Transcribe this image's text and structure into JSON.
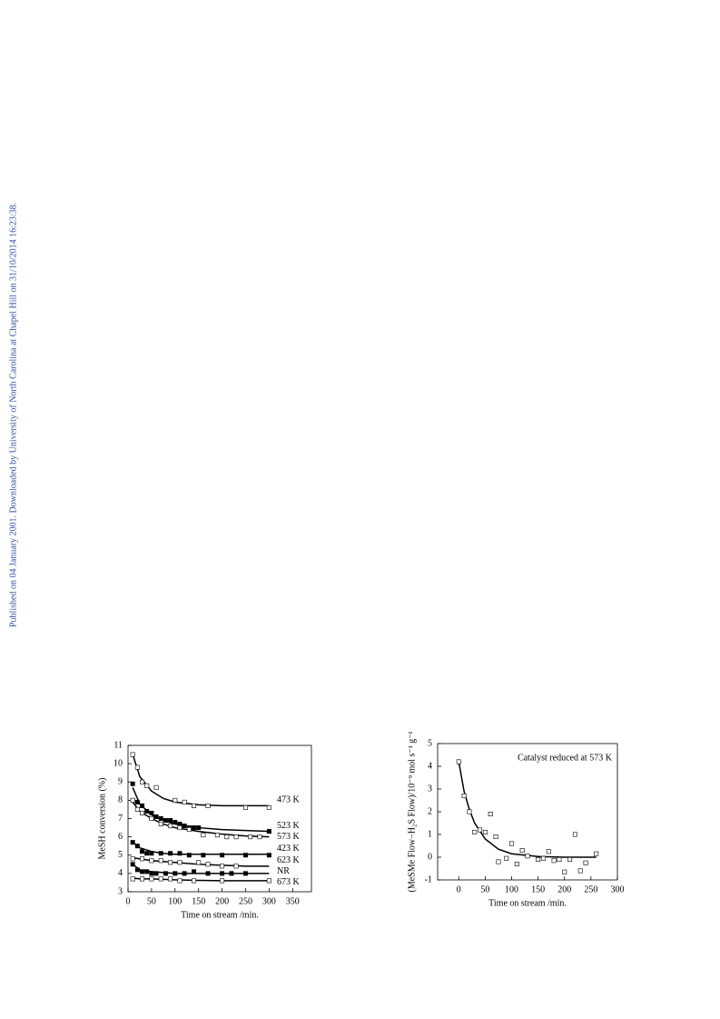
{
  "watermark": "Published on 04 January 2001. Downloaded by University of North Carolina at Chapel Hill on 31/10/2014 16:23:38.",
  "chart_data": [
    {
      "type": "scatter",
      "xlabel": "Time on stream /min.",
      "ylabel": "MeSH conversion (%)",
      "xlim": [
        0,
        390
      ],
      "xticks": [
        0,
        50,
        100,
        150,
        200,
        250,
        300,
        350
      ],
      "ylim": [
        3,
        11
      ],
      "yticks": [
        3,
        4,
        5,
        6,
        7,
        8,
        9,
        10,
        11
      ],
      "fit_x": [
        10,
        25,
        50,
        75,
        100,
        150,
        200,
        250,
        300
      ],
      "series": [
        {
          "name": "473 K",
          "marker": "open",
          "color": "#000000",
          "x": [
            10,
            20,
            30,
            40,
            60,
            100,
            120,
            140,
            170,
            250,
            300
          ],
          "values": [
            10.5,
            9.8,
            9.0,
            8.8,
            8.7,
            8.0,
            7.9,
            7.7,
            7.7,
            7.6,
            7.6
          ],
          "fit": [
            10.5,
            9.3,
            8.5,
            8.1,
            7.9,
            7.75,
            7.7,
            7.7,
            7.7
          ]
        },
        {
          "name": "523 K",
          "marker": "filled",
          "color": "#000000",
          "x": [
            10,
            20,
            30,
            40,
            50,
            60,
            70,
            80,
            90,
            100,
            110,
            120,
            130,
            140,
            150,
            300
          ],
          "values": [
            8.9,
            7.9,
            7.7,
            7.4,
            7.3,
            7.1,
            7.0,
            6.9,
            6.9,
            6.8,
            6.7,
            6.6,
            6.5,
            6.5,
            6.5,
            6.3
          ],
          "fit": [
            8.7,
            7.8,
            7.2,
            6.9,
            6.7,
            6.5,
            6.4,
            6.35,
            6.3
          ]
        },
        {
          "name": "573 K",
          "marker": "open",
          "color": "#000000",
          "x": [
            10,
            20,
            30,
            50,
            70,
            90,
            110,
            130,
            160,
            190,
            210,
            230,
            260,
            280
          ],
          "values": [
            8.0,
            7.5,
            7.3,
            7.0,
            6.7,
            6.6,
            6.5,
            6.4,
            6.1,
            6.1,
            6.0,
            6.0,
            6.0,
            6.0
          ],
          "fit": [
            7.9,
            7.4,
            7.0,
            6.7,
            6.5,
            6.3,
            6.15,
            6.05,
            6.0
          ]
        },
        {
          "name": "423 K",
          "marker": "filled",
          "color": "#000000",
          "x": [
            10,
            20,
            30,
            40,
            50,
            70,
            90,
            110,
            130,
            160,
            200,
            250,
            300
          ],
          "values": [
            5.7,
            5.5,
            5.2,
            5.1,
            5.1,
            5.1,
            5.1,
            5.1,
            5.0,
            5.0,
            5.0,
            5.0,
            5.0
          ],
          "fit": [
            5.7,
            5.4,
            5.2,
            5.1,
            5.05,
            5.05,
            5.05,
            5.05,
            5.05
          ]
        },
        {
          "name": "623 K",
          "marker": "open",
          "color": "#000000",
          "x": [
            10,
            30,
            50,
            70,
            90,
            110,
            150,
            170,
            200,
            230
          ],
          "values": [
            4.8,
            4.8,
            4.7,
            4.7,
            4.6,
            4.6,
            4.6,
            4.5,
            4.4,
            4.4
          ],
          "fit": [
            4.85,
            4.8,
            4.7,
            4.65,
            4.6,
            4.5,
            4.45,
            4.4,
            4.4
          ]
        },
        {
          "name": "NR",
          "marker": "filled",
          "color": "#000000",
          "x": [
            10,
            20,
            30,
            40,
            50,
            60,
            80,
            100,
            120,
            140,
            170,
            200,
            220,
            250
          ],
          "values": [
            4.5,
            4.2,
            4.1,
            4.1,
            4.0,
            4.0,
            4.0,
            4.0,
            4.0,
            4.1,
            4.0,
            4.0,
            4.0,
            4.0
          ],
          "fit": [
            4.5,
            4.2,
            4.1,
            4.05,
            4.0,
            4.0,
            4.0,
            4.0,
            4.0
          ]
        },
        {
          "name": "673 K",
          "marker": "open",
          "color": "#000000",
          "x": [
            10,
            30,
            50,
            70,
            90,
            110,
            140,
            200,
            300
          ],
          "values": [
            3.7,
            3.7,
            3.7,
            3.7,
            3.7,
            3.6,
            3.6,
            3.6,
            3.6
          ],
          "fit": [
            3.75,
            3.7,
            3.7,
            3.68,
            3.65,
            3.62,
            3.6,
            3.6,
            3.6
          ]
        }
      ]
    },
    {
      "type": "scatter",
      "xlabel": "Time on stream /min.",
      "ylabel": "(MeSMe Flow−H₂S Flow)/10⁻⁹ mol s⁻¹ g⁻¹",
      "annotation": "Catalyst reduced at 573 K",
      "xlim": [
        -40,
        300
      ],
      "xticks": [
        0,
        50,
        100,
        150,
        200,
        250,
        300
      ],
      "ylim": [
        -1,
        5
      ],
      "yticks": [
        -1,
        0,
        1,
        2,
        3,
        4,
        5
      ],
      "fit_x": [
        0,
        10,
        20,
        30,
        50,
        75,
        100,
        150,
        200,
        260
      ],
      "series": [
        {
          "marker": "open",
          "color": "#000000",
          "x": [
            0,
            10,
            20,
            30,
            40,
            50,
            60,
            70,
            75,
            90,
            100,
            110,
            120,
            130,
            150,
            160,
            170,
            180,
            190,
            200,
            210,
            220,
            230,
            240,
            260
          ],
          "values": [
            4.2,
            2.7,
            2.0,
            1.1,
            1.2,
            1.1,
            1.9,
            0.9,
            -0.2,
            -0.05,
            0.6,
            -0.3,
            0.3,
            0.05,
            -0.1,
            -0.05,
            0.25,
            -0.15,
            -0.1,
            -0.65,
            -0.1,
            1.0,
            -0.6,
            -0.25,
            0.15
          ],
          "fit": [
            4.2,
            2.9,
            2.1,
            1.5,
            0.8,
            0.35,
            0.15,
            0.03,
            0.0,
            0.0
          ]
        }
      ]
    }
  ]
}
